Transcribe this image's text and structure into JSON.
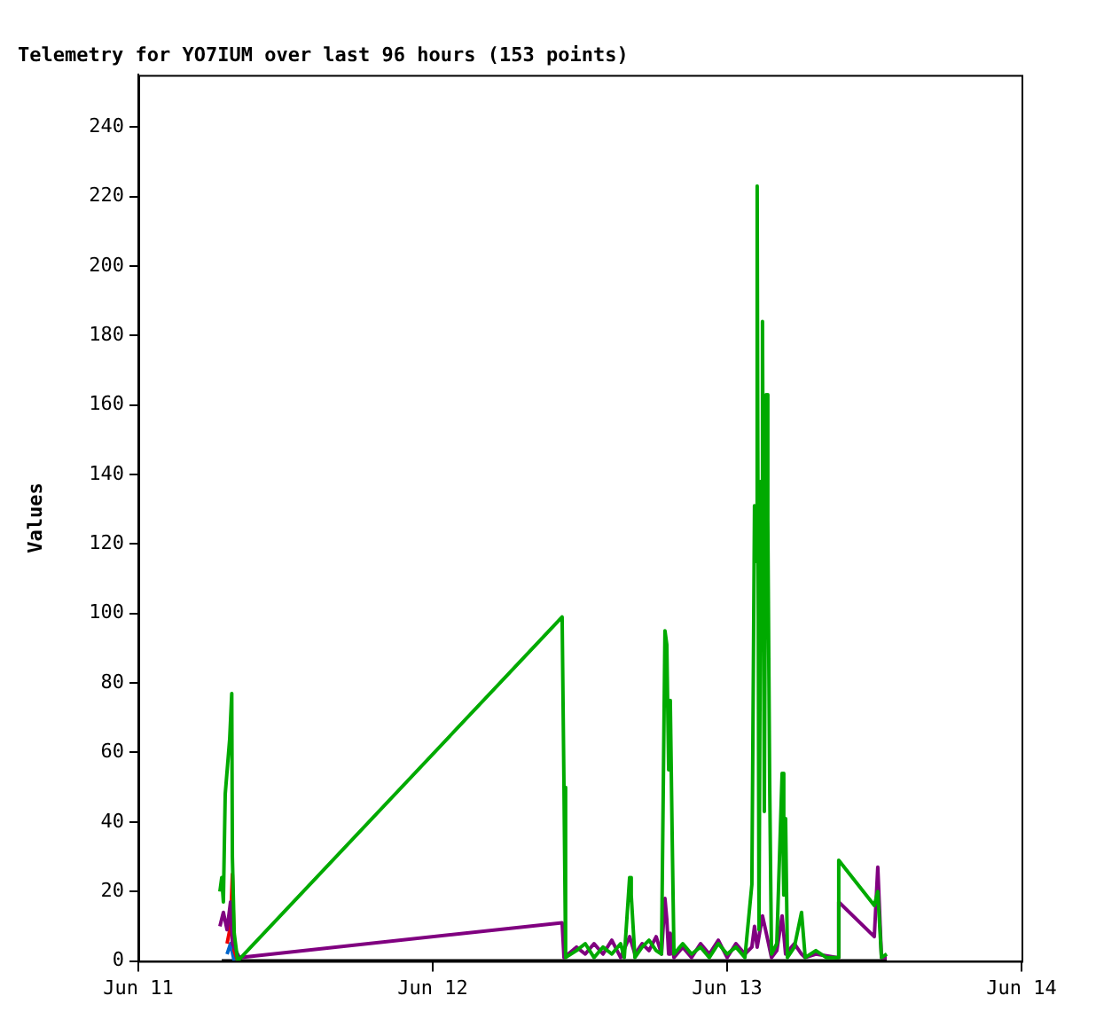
{
  "chart_data": {
    "type": "line",
    "title": "Telemetry for YO7IUM over last 96 hours (153 points)",
    "ylabel": "Values",
    "xlim": [
      "--06-11",
      "--06-14"
    ],
    "xticks": [
      {
        "value": "--06-11",
        "label": "Jun 11"
      },
      {
        "value": "--06-12",
        "label": "Jun 12"
      },
      {
        "value": "--06-13",
        "label": "Jun 13"
      },
      {
        "value": "--06-14",
        "label": "Jun 14"
      }
    ],
    "ylim": [
      0,
      255
    ],
    "yticks": [
      0,
      20,
      40,
      60,
      80,
      100,
      120,
      140,
      160,
      180,
      200,
      220,
      240
    ],
    "grid": false,
    "legend": false,
    "marker": "none",
    "line_style": "solid",
    "series": [
      {
        "color": "#00aa00",
        "x": [
          "--06-11T06:39",
          "--06-11T06:48",
          "--06-11T06:56",
          "--06-11T07:05",
          "--06-11T07:27",
          "--06-11T07:37",
          "--06-11T07:40",
          "--06-11T07:49",
          "--06-11T08:06",
          "--06-12T10:33",
          "--06-12T10:42",
          "--06-12T10:50",
          "--06-12T11:43",
          "--06-12T12:26",
          "--06-12T13:09",
          "--06-12T13:53",
          "--06-12T14:36",
          "--06-12T15:19",
          "--06-12T15:37",
          "--06-12T16:03",
          "--06-12T16:11",
          "--06-12T16:29",
          "--06-12T17:04",
          "--06-12T17:38",
          "--06-12T18:13",
          "--06-12T18:39",
          "--06-12T18:56",
          "--06-12T19:05",
          "--06-12T19:14",
          "--06-12T19:22",
          "--06-12T19:31",
          "--06-12T19:40",
          "--06-12T20:23",
          "--06-12T21:06",
          "--06-12T21:50",
          "--06-12T22:33",
          "--06-12T23:17",
          "--06-13T00:00",
          "--06-13T00:43",
          "--06-13T01:27",
          "--06-13T02:01",
          "--06-13T02:14",
          "--06-13T02:19",
          "--06-13T02:27",
          "--06-13T02:36",
          "--06-13T02:45",
          "--06-13T02:53",
          "--06-13T03:02",
          "--06-13T03:11",
          "--06-13T03:19",
          "--06-13T03:28",
          "--06-13T03:37",
          "--06-13T04:03",
          "--06-13T04:29",
          "--06-13T04:37",
          "--06-13T04:46",
          "--06-13T04:55",
          "--06-13T05:29",
          "--06-13T06:04",
          "--06-13T06:22",
          "--06-13T07:14",
          "--06-13T08:05",
          "--06-13T08:58",
          "--06-13T09:06",
          "--06-13T12:00",
          "--06-13T12:17",
          "--06-13T12:35",
          "--06-13T13:01"
        ],
        "values": [
          20,
          24,
          17,
          48,
          64,
          77,
          30,
          8,
          0,
          99,
          50,
          1,
          3,
          5,
          1,
          4,
          2,
          5,
          1,
          24,
          19,
          1,
          4,
          6,
          3,
          2,
          95,
          91,
          55,
          75,
          37,
          2,
          5,
          2,
          4,
          1,
          5,
          2,
          4,
          1,
          22,
          131,
          115,
          223,
          9,
          138,
          184,
          43,
          163,
          127,
          52,
          2,
          5,
          54,
          19,
          41,
          1,
          4,
          14,
          1,
          3,
          1,
          1,
          29,
          16,
          20,
          1,
          2
        ]
      },
      {
        "color": "#800080",
        "x": [
          "--06-11T06:39",
          "--06-11T06:56",
          "--06-11T07:14",
          "--06-11T07:31",
          "--06-11T07:40",
          "--06-11T07:57",
          "--06-11T08:14",
          "--06-12T10:33",
          "--06-12T10:42",
          "--06-12T11:43",
          "--06-12T12:26",
          "--06-12T13:09",
          "--06-12T13:53",
          "--06-12T14:36",
          "--06-12T15:19",
          "--06-12T16:03",
          "--06-12T16:29",
          "--06-12T17:04",
          "--06-12T17:38",
          "--06-12T18:13",
          "--06-12T18:39",
          "--06-12T18:56",
          "--06-12T19:05",
          "--06-12T19:14",
          "--06-12T19:22",
          "--06-12T19:40",
          "--06-12T20:23",
          "--06-12T21:06",
          "--06-12T21:50",
          "--06-12T22:33",
          "--06-12T23:17",
          "--06-13T00:00",
          "--06-13T00:43",
          "--06-13T01:27",
          "--06-13T02:01",
          "--06-13T02:14",
          "--06-13T02:27",
          "--06-13T02:53",
          "--06-13T03:19",
          "--06-13T03:37",
          "--06-13T04:03",
          "--06-13T04:29",
          "--06-13T04:46",
          "--06-13T05:29",
          "--06-13T06:04",
          "--06-13T06:22",
          "--06-13T07:14",
          "--06-13T08:58",
          "--06-13T09:06",
          "--06-13T12:00",
          "--06-13T12:17",
          "--06-13T12:26",
          "--06-13T12:35",
          "--06-13T13:01"
        ],
        "values": [
          10,
          14,
          9,
          17,
          5,
          3,
          1,
          11,
          1,
          4,
          2,
          5,
          2,
          6,
          1,
          7,
          2,
          5,
          3,
          7,
          2,
          18,
          12,
          2,
          8,
          1,
          4,
          1,
          5,
          2,
          6,
          1,
          5,
          2,
          4,
          10,
          4,
          13,
          6,
          1,
          3,
          13,
          2,
          5,
          2,
          1,
          2,
          1,
          17,
          7,
          27,
          14,
          1,
          1
        ]
      },
      {
        "color": "#ee0000",
        "x": [
          "--06-11T07:14",
          "--06-11T07:31",
          "--06-11T07:40",
          "--06-11T07:49",
          "--06-11T08:06"
        ],
        "values": [
          5,
          10,
          25,
          3,
          0
        ]
      },
      {
        "color": "#0066cc",
        "x": [
          "--06-11T07:14",
          "--06-11T07:31",
          "--06-11T07:49"
        ],
        "values": [
          2,
          5,
          0
        ]
      },
      {
        "color": "#000000",
        "x": [
          "--06-11T06:48",
          "--06-13T13:01"
        ],
        "values": [
          0,
          0
        ]
      }
    ]
  }
}
